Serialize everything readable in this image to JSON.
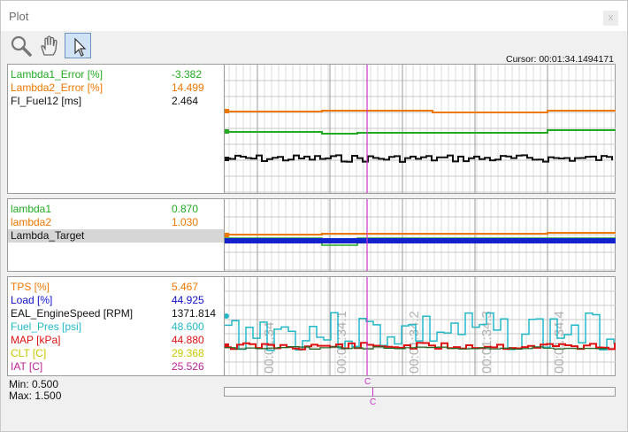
{
  "window": {
    "title": "Plot",
    "close_glyph": "x"
  },
  "toolbar": {
    "tools": [
      {
        "name": "zoom-tool",
        "icon": "magnifier-icon",
        "active": false
      },
      {
        "name": "pan-tool",
        "icon": "hand-icon",
        "active": false
      },
      {
        "name": "select-tool",
        "icon": "arrow-cursor-icon",
        "active": true
      }
    ]
  },
  "cursor_readout": "Cursor: 00:01:34.1494171",
  "panels": [
    {
      "channels": [
        {
          "name": "Lambda1_Error [%]",
          "value": "-3.382",
          "color": "#22aa22"
        },
        {
          "name": "Lambda2_Error [%]",
          "value": "14.499",
          "color": "#ee7700"
        },
        {
          "name": "FI_Fuel12 [ms]",
          "value": "2.464",
          "color": "#111111"
        }
      ]
    },
    {
      "channels": [
        {
          "name": "lambda1",
          "value": "0.870",
          "color": "#22aa22"
        },
        {
          "name": "lambda2",
          "value": "1.030",
          "color": "#ee7700"
        },
        {
          "name": "Lambda_Target",
          "value": "",
          "color": "#111111",
          "selected": true
        }
      ]
    },
    {
      "channels": [
        {
          "name": "TPS [%]",
          "value": "5.467",
          "color": "#ee7700"
        },
        {
          "name": "Load [%]",
          "value": "44.925",
          "color": "#1111cc"
        },
        {
          "name": "EAL_EngineSpeed [RPM]",
          "value": "1371.814",
          "color": "#111111"
        },
        {
          "name": "Fuel_Pres [psi]",
          "value": "48.600",
          "color": "#22b8c8"
        },
        {
          "name": "MAP [kPa]",
          "value": "44.880",
          "color": "#dd1111"
        },
        {
          "name": "CLT [C]",
          "value": "29.368",
          "color": "#c8c800"
        },
        {
          "name": "IAT [C]",
          "value": "25.526",
          "color": "#bb2299"
        }
      ]
    }
  ],
  "time_ticks": [
    "00:01:34",
    "00:01:34.1",
    "00:01:34.2",
    "00:01:34.3",
    "00:01:34.4"
  ],
  "range": {
    "min": "Min:  0.500",
    "max": "Max:  1.500"
  },
  "cursor_marker": "C",
  "colors": {
    "cursor": "#cc33cc",
    "accent_blue": "#1111cc"
  }
}
